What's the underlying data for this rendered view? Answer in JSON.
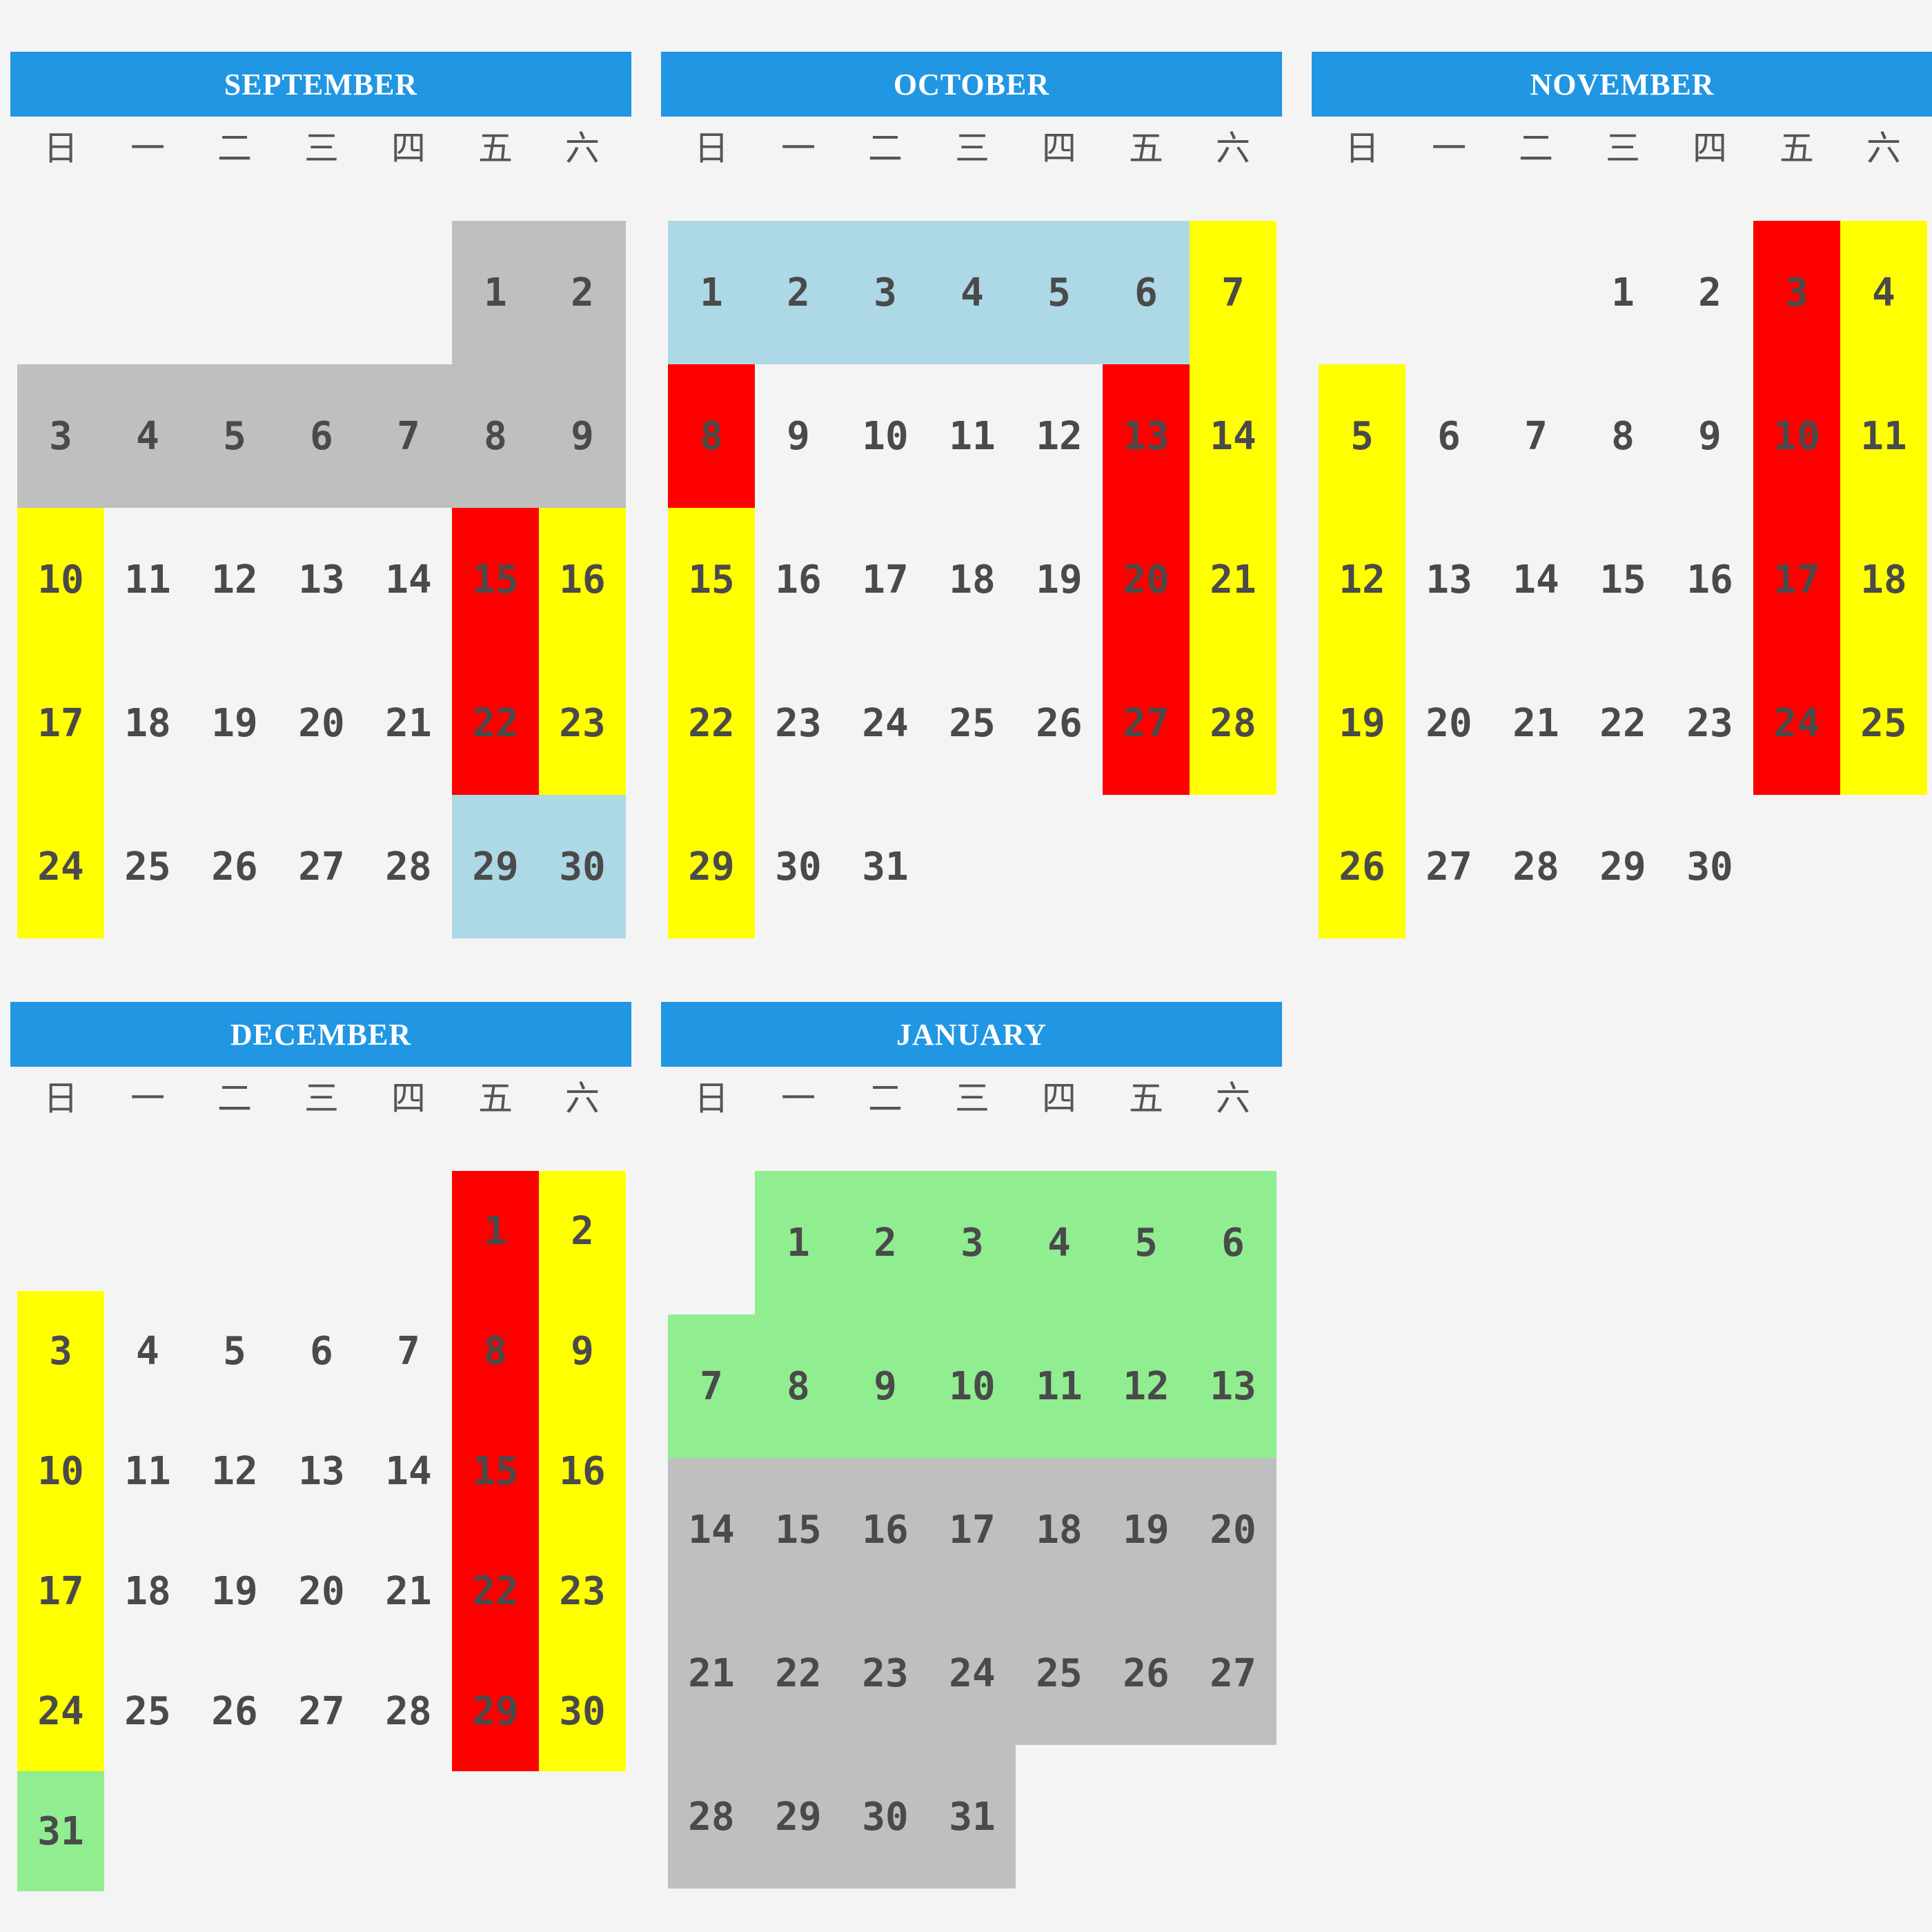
{
  "weekday_labels": [
    "日",
    "一",
    "二",
    "三",
    "四",
    "五",
    "六"
  ],
  "colors": {
    "header": "#2196e3",
    "gray": "#bfbfbf",
    "blue": "#add8e6",
    "yellow": "#ffff00",
    "red": "#ff0000",
    "green": "#90ee90"
  },
  "months": [
    {
      "name": "SEPTEMBER",
      "first_weekday": 5,
      "days_in_month": 30,
      "colored_days": {
        "gray": [
          1,
          2,
          3,
          4,
          5,
          6,
          7,
          8,
          9
        ],
        "yellow": [
          10,
          16,
          17,
          23,
          24
        ],
        "red": [
          15,
          22
        ],
        "blue": [
          29,
          30
        ]
      }
    },
    {
      "name": "OCTOBER",
      "first_weekday": 0,
      "days_in_month": 31,
      "colored_days": {
        "blue": [
          1,
          2,
          3,
          4,
          5,
          6
        ],
        "yellow": [
          7,
          14,
          15,
          21,
          22,
          28,
          29
        ],
        "red": [
          8,
          13,
          20,
          27
        ]
      }
    },
    {
      "name": "NOVEMBER",
      "first_weekday": 3,
      "days_in_month": 30,
      "colored_days": {
        "red": [
          3,
          10,
          17,
          24
        ],
        "yellow": [
          4,
          5,
          11,
          12,
          18,
          19,
          25,
          26
        ]
      }
    },
    {
      "name": "DECEMBER",
      "first_weekday": 5,
      "days_in_month": 31,
      "colored_days": {
        "red": [
          1,
          8,
          15,
          22,
          29
        ],
        "yellow": [
          2,
          3,
          9,
          10,
          16,
          17,
          23,
          24,
          30
        ],
        "green": [
          31
        ]
      }
    },
    {
      "name": "JANUARY",
      "first_weekday": 1,
      "days_in_month": 31,
      "colored_days": {
        "green": [
          1,
          2,
          3,
          4,
          5,
          6,
          7,
          8,
          9,
          10,
          11,
          12,
          13
        ],
        "gray": [
          14,
          15,
          16,
          17,
          18,
          19,
          20,
          21,
          22,
          23,
          24,
          25,
          26,
          27,
          28,
          29,
          30,
          31
        ]
      }
    }
  ]
}
